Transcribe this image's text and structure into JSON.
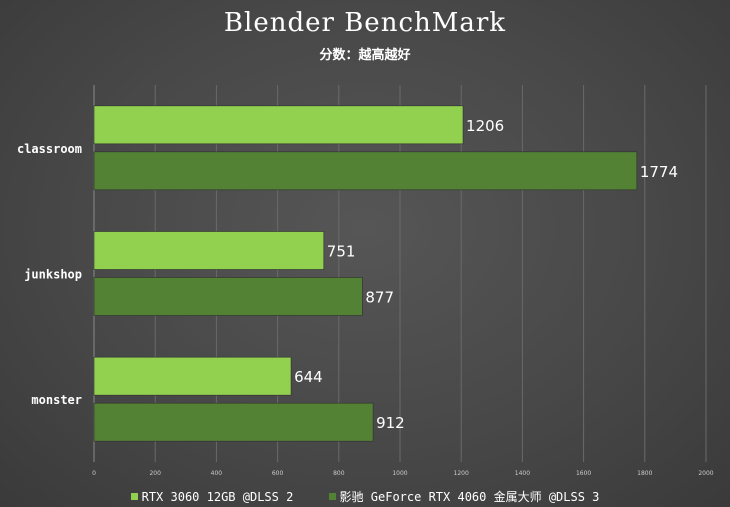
{
  "chart_data": {
    "type": "bar",
    "orientation": "horizontal",
    "title": "Blender BenchMark",
    "subtitle": "分数：越高越好",
    "categories": [
      "classroom",
      "junkshop",
      "monster"
    ],
    "series": [
      {
        "name": "RTX 3060 12GB @DLSS 2",
        "color": "#92d050",
        "values": [
          1206,
          751,
          644
        ]
      },
      {
        "name": "影驰 GeForce RTX 4060 金属大师 @DLSS 3",
        "color": "#548235",
        "values": [
          1774,
          877,
          912
        ]
      }
    ],
    "xlim": [
      0,
      2000
    ],
    "xticks": [
      "0",
      "200",
      "400",
      "600",
      "800",
      "1000",
      "1200",
      "1400",
      "1600",
      "1800",
      "2000"
    ],
    "grid": true,
    "legend_position": "bottom"
  }
}
